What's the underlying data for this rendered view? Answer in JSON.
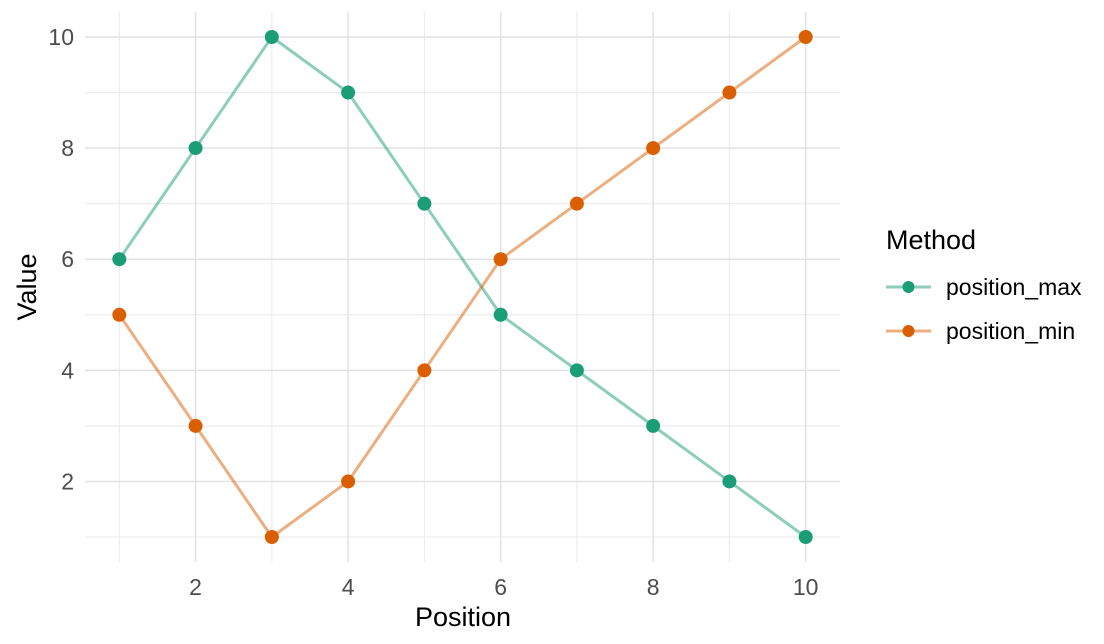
{
  "figure": {
    "background": "#FFFFFF"
  },
  "chart_data": {
    "type": "line",
    "title": "",
    "xlabel": "Position",
    "ylabel": "Value",
    "x": [
      1,
      2,
      3,
      4,
      5,
      6,
      7,
      8,
      9,
      10
    ],
    "series": [
      {
        "name": "position_max",
        "color": "#1B9E77",
        "values": [
          6,
          8,
          10,
          9,
          7,
          5,
          4,
          3,
          2,
          1
        ]
      },
      {
        "name": "position_min",
        "color": "#D95F02",
        "values": [
          5,
          3,
          1,
          2,
          4,
          6,
          7,
          8,
          9,
          10
        ]
      }
    ],
    "xlim": [
      0.55,
      10.45
    ],
    "ylim": [
      0.55,
      10.45
    ],
    "x_ticks": [
      2,
      4,
      6,
      8,
      10
    ],
    "y_ticks": [
      2,
      4,
      6,
      8,
      10
    ],
    "x_minor": [
      1,
      3,
      5,
      7,
      9
    ],
    "y_minor": [
      1,
      3,
      5,
      7,
      9
    ],
    "grid": true,
    "legend_position": "right",
    "legend_title": "Method",
    "line_opacity": 0.5,
    "styles": {
      "grid_major_color": "#E2E2E2",
      "grid_minor_color": "#EBEBEB",
      "tick_text_color": "#4D4D4D",
      "title_text_color": "#000000",
      "background": "#FFFFFF"
    }
  },
  "legend": {
    "title": "Method",
    "entries": [
      {
        "label": "position_max",
        "color": "#1B9E77"
      },
      {
        "label": "position_min",
        "color": "#D95F02"
      }
    ]
  }
}
